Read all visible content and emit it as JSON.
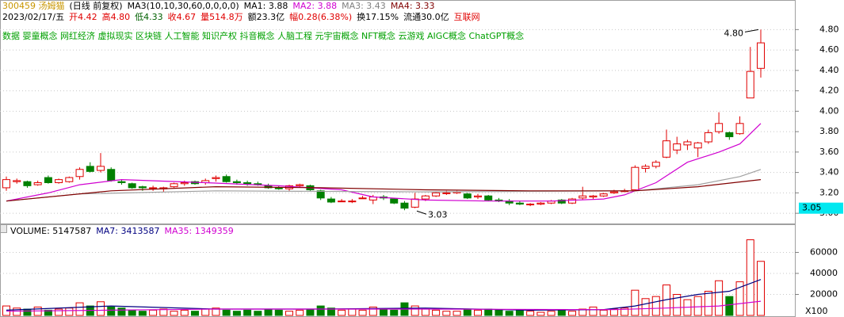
{
  "chart_data": {
    "type": "candlestick",
    "header": [
      {
        "text": "300459 汤姆猫",
        "color": "#c89600"
      },
      {
        "text": "(日线 前复权)",
        "color": "#000000"
      },
      {
        "text": "MA3(10,10,30,60,0,0,0,0)",
        "color": "#000000"
      },
      {
        "text": "MA1: 3.88",
        "color": "#000000"
      },
      {
        "text": "MA2: 3.88",
        "color": "#d000d0"
      },
      {
        "text": "MA3: 3.43",
        "color": "#808080"
      },
      {
        "text": "MA4: 3.33",
        "color": "#800000"
      }
    ],
    "quote": [
      {
        "text": "2023/02/17/五",
        "color": "#000000"
      },
      {
        "text": "开4.42",
        "color": "#e00000"
      },
      {
        "text": "高4.80",
        "color": "#e00000"
      },
      {
        "text": "低4.33",
        "color": "#006000"
      },
      {
        "text": "收4.67",
        "color": "#e00000"
      },
      {
        "text": "量514.8万",
        "color": "#e00000"
      },
      {
        "text": "额23.3亿",
        "color": "#000000"
      },
      {
        "text": "幅0.28(6.38%)",
        "color": "#e00000"
      },
      {
        "text": "换17.15%",
        "color": "#000000"
      },
      {
        "text": "流通30.0亿",
        "color": "#000000"
      },
      {
        "text": "互联网",
        "color": "#e00000"
      }
    ],
    "concepts": "数据 婴童概念 网红经济 虚拟现实 区块链 人工智能 知识产权 抖音概念 人脑工程 元宇宙概念 NFT概念 云游戏 AIGC概念 ChatGPT概念",
    "concepts_color": "#00a000",
    "up_color": "#e00000",
    "down_color": "#008000",
    "open": [
      3.25,
      3.31,
      3.31,
      3.28,
      3.35,
      3.3,
      3.31,
      3.36,
      3.46,
      3.42,
      3.43,
      3.31,
      3.29,
      3.26,
      3.25,
      3.24,
      3.26,
      3.29,
      3.31,
      3.3,
      3.34,
      3.36,
      3.31,
      3.3,
      3.29,
      3.27,
      3.25,
      3.24,
      3.27,
      3.27,
      3.22,
      3.14,
      3.12,
      3.12,
      3.15,
      3.13,
      3.16,
      3.14,
      3.1,
      3.06,
      3.14,
      3.17,
      3.2,
      3.2,
      3.19,
      3.16,
      3.17,
      3.13,
      3.12,
      3.1,
      3.09,
      3.09,
      3.1,
      3.13,
      3.1,
      3.15,
      3.16,
      3.17,
      3.2,
      3.22,
      3.23,
      3.44,
      3.46,
      3.55,
      3.62,
      3.67,
      3.64,
      3.7,
      3.8,
      3.79,
      3.78,
      4.13,
      4.42
    ],
    "high": [
      3.36,
      3.34,
      3.32,
      3.32,
      3.37,
      3.34,
      3.36,
      3.45,
      3.5,
      3.59,
      3.45,
      3.33,
      3.3,
      3.27,
      3.27,
      3.26,
      3.3,
      3.32,
      3.32,
      3.34,
      3.37,
      3.38,
      3.33,
      3.32,
      3.31,
      3.29,
      3.27,
      3.28,
      3.29,
      3.28,
      3.23,
      3.16,
      3.14,
      3.14,
      3.17,
      3.18,
      3.18,
      3.15,
      3.12,
      3.2,
      3.18,
      3.21,
      3.22,
      3.22,
      3.2,
      3.19,
      3.18,
      3.15,
      3.14,
      3.12,
      3.1,
      3.11,
      3.13,
      3.14,
      3.15,
      3.26,
      3.18,
      3.2,
      3.23,
      3.24,
      3.47,
      3.48,
      3.52,
      3.82,
      3.75,
      3.72,
      3.7,
      3.82,
      3.99,
      3.8,
      3.95,
      4.63,
      4.8
    ],
    "low": [
      3.22,
      3.29,
      3.25,
      3.27,
      3.29,
      3.29,
      3.3,
      3.33,
      3.4,
      3.4,
      3.31,
      3.28,
      3.24,
      3.22,
      3.22,
      3.21,
      3.25,
      3.27,
      3.28,
      3.28,
      3.31,
      3.3,
      3.28,
      3.27,
      3.27,
      3.24,
      3.23,
      3.22,
      3.25,
      3.22,
      3.13,
      3.1,
      3.11,
      3.1,
      3.14,
      3.09,
      3.13,
      3.09,
      3.03,
      3.05,
      3.12,
      3.16,
      3.18,
      3.19,
      3.14,
      3.14,
      3.12,
      3.11,
      3.08,
      3.08,
      3.07,
      3.08,
      3.09,
      3.09,
      3.09,
      3.13,
      3.14,
      3.16,
      3.19,
      3.21,
      3.22,
      3.4,
      3.44,
      3.54,
      3.58,
      3.62,
      3.55,
      3.68,
      3.78,
      3.72,
      3.77,
      4.13,
      4.33
    ],
    "close": [
      3.33,
      3.32,
      3.27,
      3.3,
      3.3,
      3.33,
      3.35,
      3.43,
      3.41,
      3.46,
      3.32,
      3.3,
      3.25,
      3.25,
      3.25,
      3.25,
      3.29,
      3.3,
      3.29,
      3.32,
      3.35,
      3.31,
      3.3,
      3.29,
      3.28,
      3.25,
      3.24,
      3.27,
      3.28,
      3.23,
      3.15,
      3.11,
      3.12,
      3.12,
      3.15,
      3.16,
      3.15,
      3.1,
      3.05,
      3.14,
      3.17,
      3.2,
      3.2,
      3.21,
      3.15,
      3.17,
      3.13,
      3.12,
      3.1,
      3.09,
      3.09,
      3.1,
      3.12,
      3.1,
      3.14,
      3.17,
      3.17,
      3.19,
      3.21,
      3.22,
      3.45,
      3.46,
      3.5,
      3.71,
      3.68,
      3.7,
      3.69,
      3.79,
      3.88,
      3.75,
      3.88,
      4.39,
      4.67
    ],
    "ma_lines": [
      {
        "color": "#d000d0",
        "x": [
          0,
          4,
          7,
          11,
          19,
          26,
          32,
          35,
          40,
          46,
          52,
          57,
          59,
          62,
          65,
          68,
          70,
          72
        ],
        "values": [
          3.12,
          3.2,
          3.28,
          3.33,
          3.3,
          3.27,
          3.23,
          3.16,
          3.13,
          3.12,
          3.12,
          3.14,
          3.18,
          3.3,
          3.5,
          3.6,
          3.68,
          3.88
        ]
      },
      {
        "color": "#a0a0a0",
        "x": [
          0,
          7,
          20,
          40,
          60,
          66,
          70,
          72
        ],
        "values": [
          3.12,
          3.19,
          3.22,
          3.21,
          3.22,
          3.28,
          3.36,
          3.43
        ]
      },
      {
        "color": "#800000",
        "x": [
          0,
          10,
          20,
          30,
          40,
          50,
          60,
          66,
          72
        ],
        "values": [
          3.12,
          3.22,
          3.26,
          3.25,
          3.23,
          3.22,
          3.22,
          3.26,
          3.33
        ]
      }
    ],
    "ylim": [
      2.9,
      5.09
    ],
    "yticks": [
      {
        "value": 3,
        "label": "3.00"
      },
      {
        "value": 3.2,
        "label": "3.20"
      },
      {
        "value": 3.4,
        "label": "3.40"
      },
      {
        "value": 3.6,
        "label": "3.60"
      },
      {
        "value": 3.8,
        "label": "3.80"
      },
      {
        "value": 4,
        "label": "4.00"
      },
      {
        "value": 4.2,
        "label": "4.20"
      },
      {
        "value": 4.4,
        "label": "4.40"
      },
      {
        "value": 4.6,
        "label": "4.60"
      },
      {
        "value": 4.8,
        "label": "4.80"
      }
    ],
    "high_annotation": {
      "value": 4.8,
      "label": "4.80"
    },
    "low_annotation": {
      "value": 3.03,
      "label": "3.03"
    },
    "cursor_price": {
      "value": 3.05,
      "label": "3.05"
    },
    "volume_header": [
      {
        "text": "VOLUME: 5147587",
        "color": "#000000"
      },
      {
        "text": "MA7: 3413587",
        "color": "#000080"
      },
      {
        "text": "MA35: 1349359",
        "color": "#d000d0"
      }
    ],
    "volume": [
      9000,
      7000,
      6000,
      8000,
      5000,
      6000,
      7000,
      12000,
      9000,
      13000,
      8000,
      7000,
      5000,
      4000,
      5000,
      6000,
      4000,
      5000,
      4000,
      6000,
      7000,
      5000,
      4000,
      5000,
      4000,
      6000,
      5000,
      4000,
      5000,
      6000,
      9000,
      7000,
      5000,
      6000,
      5000,
      8000,
      6000,
      5000,
      12000,
      9000,
      6000,
      5000,
      4000,
      4000,
      6000,
      5000,
      6000,
      5000,
      4000,
      5000,
      4000,
      3000,
      4000,
      5000,
      4000,
      6000,
      8000,
      5000,
      6000,
      7000,
      24000,
      16000,
      18000,
      29000,
      20000,
      15000,
      18000,
      23000,
      33000,
      18000,
      32000,
      72000,
      51476
    ],
    "volume_ma_lines": [
      {
        "color": "#000080",
        "x": [
          0,
          10,
          20,
          30,
          40,
          50,
          57,
          60,
          63,
          66,
          69,
          72
        ],
        "values": [
          5000,
          9000,
          6000,
          6000,
          7000,
          5000,
          5500,
          9000,
          15000,
          20000,
          23000,
          34136
        ]
      },
      {
        "color": "#d000d0",
        "x": [
          0,
          20,
          40,
          58,
          63,
          68,
          72
        ],
        "values": [
          4000,
          6000,
          6000,
          5500,
          7000,
          9000,
          13494
        ]
      }
    ],
    "volume_ylim": [
      0,
      86000
    ],
    "volume_yticks": [
      20000,
      40000,
      60000
    ],
    "volume_unit": "X100"
  }
}
